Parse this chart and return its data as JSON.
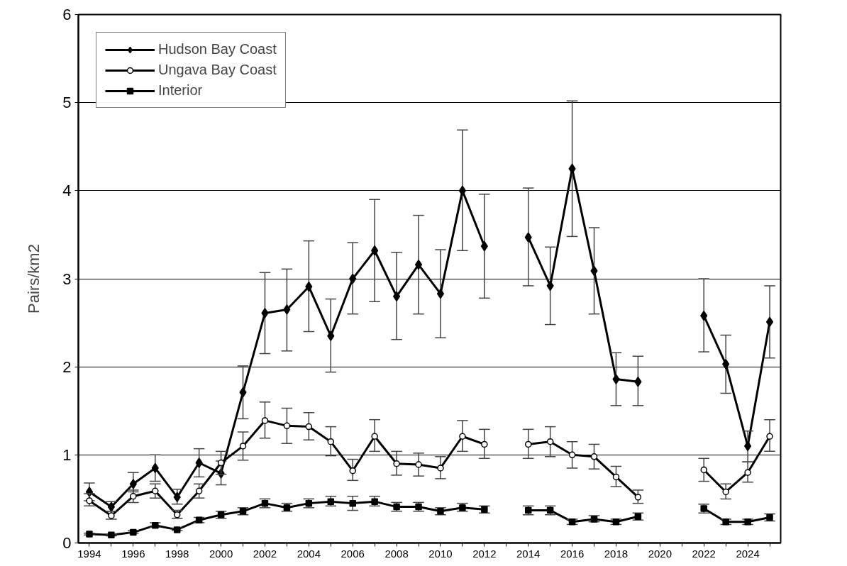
{
  "chart_data": {
    "type": "line",
    "ylabel": "Pairs/km2",
    "x": [
      1994,
      1995,
      1996,
      1997,
      1998,
      1999,
      2000,
      2001,
      2002,
      2003,
      2004,
      2005,
      2006,
      2007,
      2008,
      2009,
      2010,
      2011,
      2012,
      2013,
      2014,
      2015,
      2016,
      2017,
      2018,
      2019,
      2020,
      2021,
      2022,
      2023,
      2024,
      2025
    ],
    "xlim": [
      1993.5,
      2025.5
    ],
    "xticks": [
      {
        "value": 1994,
        "label": "1994"
      },
      {
        "value": 1995,
        "label": null
      },
      {
        "value": 1996,
        "label": "1996"
      },
      {
        "value": 1997,
        "label": null
      },
      {
        "value": 1998,
        "label": "1998"
      },
      {
        "value": 1999,
        "label": null
      },
      {
        "value": 2000,
        "label": "2000"
      },
      {
        "value": 2001,
        "label": null
      },
      {
        "value": 2002,
        "label": "2002"
      },
      {
        "value": 2003,
        "label": null
      },
      {
        "value": 2004,
        "label": "2004"
      },
      {
        "value": 2005,
        "label": null
      },
      {
        "value": 2006,
        "label": "2006"
      },
      {
        "value": 2007,
        "label": null
      },
      {
        "value": 2008,
        "label": "2008"
      },
      {
        "value": 2009,
        "label": null
      },
      {
        "value": 2010,
        "label": "2010"
      },
      {
        "value": 2011,
        "label": null
      },
      {
        "value": 2012,
        "label": "2012"
      },
      {
        "value": 2013,
        "label": null
      },
      {
        "value": 2014,
        "label": "2014"
      },
      {
        "value": 2015,
        "label": null
      },
      {
        "value": 2016,
        "label": "2016"
      },
      {
        "value": 2017,
        "label": null
      },
      {
        "value": 2018,
        "label": "2018"
      },
      {
        "value": 2019,
        "label": null
      },
      {
        "value": 2020,
        "label": "2020"
      },
      {
        "value": 2021,
        "label": null
      },
      {
        "value": 2022,
        "label": "2022"
      },
      {
        "value": 2023,
        "label": null
      },
      {
        "value": 2024,
        "label": "2024"
      },
      {
        "value": 2025,
        "label": null
      }
    ],
    "ylim": [
      0,
      6
    ],
    "yticks": [
      0,
      1,
      2,
      3,
      4,
      5,
      6
    ],
    "grid": "y",
    "legend": "top left",
    "line_style": "solid",
    "series": [
      {
        "name": "Hudson Bay Coast",
        "color": "#000000",
        "marker": "diamond",
        "values": [
          0.58,
          0.41,
          0.67,
          0.85,
          0.52,
          0.91,
          0.79,
          1.71,
          2.61,
          2.65,
          2.91,
          2.35,
          3.0,
          3.32,
          2.8,
          3.16,
          2.83,
          4.0,
          3.37,
          null,
          3.47,
          2.92,
          4.25,
          3.09,
          1.86,
          1.83,
          null,
          null,
          2.58,
          2.03,
          1.1,
          2.51
        ],
        "errors": [
          [
            0.48,
            0.68
          ],
          [
            0.36,
            0.47
          ],
          [
            0.58,
            0.8
          ],
          [
            0.7,
            1.0
          ],
          [
            0.44,
            0.61
          ],
          [
            0.75,
            1.07
          ],
          [
            0.66,
            0.93
          ],
          [
            1.41,
            2.01
          ],
          [
            2.15,
            3.07
          ],
          [
            2.18,
            3.11
          ],
          [
            2.4,
            3.43
          ],
          [
            1.94,
            2.77
          ],
          [
            2.6,
            3.41
          ],
          [
            2.74,
            3.9
          ],
          [
            2.31,
            3.3
          ],
          [
            2.6,
            3.72
          ],
          [
            2.33,
            3.33
          ],
          [
            3.32,
            4.69
          ],
          [
            2.78,
            3.96
          ],
          null,
          [
            2.92,
            4.03
          ],
          [
            2.48,
            3.36
          ],
          [
            3.48,
            5.02
          ],
          [
            2.6,
            3.58
          ],
          [
            1.56,
            2.16
          ],
          [
            1.56,
            2.12
          ],
          null,
          null,
          [
            2.17,
            3.0
          ],
          [
            1.7,
            2.36
          ],
          [
            0.92,
            1.27
          ],
          [
            2.1,
            2.92
          ]
        ]
      },
      {
        "name": "Ungava Bay Coast",
        "color": "#000000",
        "marker": "circle",
        "values": [
          0.48,
          0.31,
          0.53,
          0.59,
          0.32,
          0.59,
          0.91,
          1.1,
          1.39,
          1.33,
          1.32,
          1.15,
          0.82,
          1.21,
          0.9,
          0.89,
          0.85,
          1.21,
          1.12,
          null,
          1.12,
          1.15,
          1.0,
          0.98,
          0.75,
          0.52,
          null,
          null,
          0.83,
          0.58,
          0.8,
          1.21
        ],
        "errors": [
          [
            0.42,
            0.56
          ],
          [
            0.27,
            0.36
          ],
          [
            0.46,
            0.6
          ],
          [
            0.51,
            0.67
          ],
          [
            0.28,
            0.37
          ],
          [
            0.51,
            0.67
          ],
          [
            0.78,
            1.04
          ],
          [
            0.94,
            1.26
          ],
          [
            1.19,
            1.6
          ],
          [
            1.13,
            1.53
          ],
          [
            1.17,
            1.48
          ],
          [
            0.99,
            1.32
          ],
          [
            0.71,
            0.95
          ],
          [
            1.04,
            1.4
          ],
          [
            0.77,
            1.04
          ],
          [
            0.76,
            1.02
          ],
          [
            0.73,
            0.98
          ],
          [
            1.04,
            1.39
          ],
          [
            0.96,
            1.29
          ],
          null,
          [
            0.96,
            1.29
          ],
          [
            0.98,
            1.32
          ],
          [
            0.85,
            1.15
          ],
          [
            0.84,
            1.12
          ],
          [
            0.64,
            0.87
          ],
          [
            0.45,
            0.6
          ],
          null,
          null,
          [
            0.7,
            0.96
          ],
          [
            0.5,
            0.67
          ],
          [
            0.69,
            0.92
          ],
          [
            1.04,
            1.4
          ]
        ]
      },
      {
        "name": "Interior",
        "color": "#000000",
        "marker": "square",
        "values": [
          0.1,
          0.09,
          0.12,
          0.2,
          0.15,
          0.26,
          0.32,
          0.36,
          0.45,
          0.4,
          0.45,
          0.47,
          0.45,
          0.47,
          0.41,
          0.41,
          0.36,
          0.4,
          0.38,
          null,
          0.37,
          0.37,
          0.24,
          0.27,
          0.24,
          0.3,
          null,
          null,
          0.39,
          0.24,
          0.24,
          0.29
        ],
        "errors": [
          [
            0.09,
            0.11
          ],
          [
            0.08,
            0.1
          ],
          [
            0.11,
            0.14
          ],
          [
            0.18,
            0.23
          ],
          [
            0.14,
            0.17
          ],
          [
            0.23,
            0.29
          ],
          [
            0.28,
            0.36
          ],
          [
            0.32,
            0.4
          ],
          [
            0.4,
            0.5
          ],
          [
            0.36,
            0.45
          ],
          [
            0.4,
            0.5
          ],
          [
            0.42,
            0.53
          ],
          [
            0.37,
            0.53
          ],
          [
            0.42,
            0.53
          ],
          [
            0.36,
            0.46
          ],
          [
            0.36,
            0.46
          ],
          [
            0.32,
            0.4
          ],
          [
            0.36,
            0.45
          ],
          [
            0.34,
            0.42
          ],
          null,
          [
            0.32,
            0.42
          ],
          [
            0.32,
            0.42
          ],
          [
            0.21,
            0.27
          ],
          [
            0.24,
            0.31
          ],
          [
            0.21,
            0.27
          ],
          [
            0.26,
            0.34
          ],
          null,
          null,
          [
            0.34,
            0.44
          ],
          [
            0.21,
            0.27
          ],
          [
            0.21,
            0.27
          ],
          [
            0.25,
            0.33
          ]
        ]
      }
    ]
  }
}
